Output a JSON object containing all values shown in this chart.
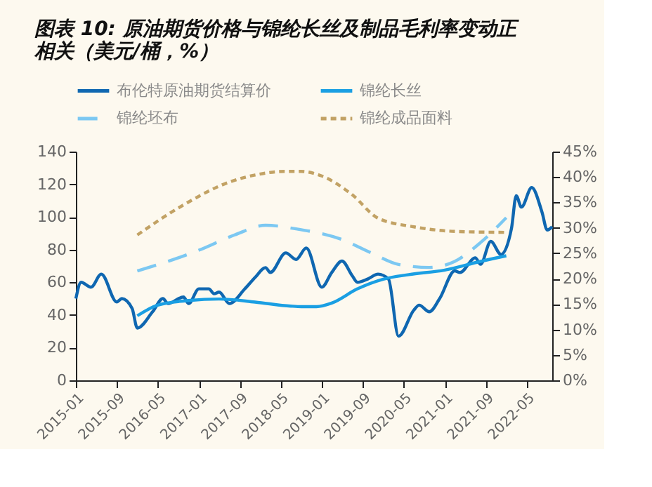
{
  "chart_data": {
    "type": "line",
    "title": "图表 10: 原油期货价格与锦纶长丝及制品毛利率变动正相关（美元/桶，%）",
    "xlim": [
      "2015-01",
      "2022-10"
    ],
    "xticks": [
      "2015-01",
      "2015-09",
      "2016-05",
      "2017-01",
      "2017-09",
      "2018-05",
      "2019-01",
      "2019-09",
      "2020-05",
      "2021-01",
      "2021-09",
      "2022-05"
    ],
    "ylim": [
      0,
      140
    ],
    "yticks": [
      0,
      20,
      40,
      60,
      80,
      100,
      120,
      140
    ],
    "y2lim": [
      0,
      45
    ],
    "y2ticks": [
      {
        "value": 0,
        "label": "0%"
      },
      {
        "value": 5,
        "label": "5%"
      },
      {
        "value": 10,
        "label": "10%"
      },
      {
        "value": 15,
        "label": "15%"
      },
      {
        "value": 20,
        "label": "20%"
      },
      {
        "value": 25,
        "label": "25%"
      },
      {
        "value": 30,
        "label": "30%"
      },
      {
        "value": 35,
        "label": "35%"
      },
      {
        "value": 40,
        "label": "40%"
      },
      {
        "value": 45,
        "label": "45%"
      }
    ],
    "legend": "top",
    "grid": false,
    "series": [
      {
        "name": "布伦特原油期货结算价",
        "color": "#0f67b1",
        "line_style": "solid",
        "x": [
          "2015-01",
          "2015-02",
          "2015-04",
          "2015-06",
          "2015-09",
          "2015-10",
          "2015-12",
          "2016-01",
          "2016-04",
          "2016-06",
          "2016-07",
          "2016-10",
          "2016-11",
          "2017-01",
          "2017-03",
          "2017-04",
          "2017-05",
          "2017-07",
          "2017-10",
          "2017-12",
          "2018-02",
          "2018-03",
          "2018-06",
          "2018-08",
          "2018-10",
          "2019-01",
          "2019-03",
          "2019-05",
          "2019-07",
          "2019-08",
          "2019-10",
          "2019-12",
          "2020-02",
          "2020-04",
          "2020-07",
          "2020-08",
          "2020-10",
          "2020-12",
          "2021-03",
          "2021-04",
          "2021-07",
          "2021-08",
          "2021-10",
          "2021-12",
          "2022-02",
          "2022-03",
          "2022-04",
          "2022-06",
          "2022-08",
          "2022-09",
          "2022-10"
        ],
        "values": [
          50,
          60,
          57,
          65,
          48,
          50,
          44,
          32,
          42,
          50,
          47,
          51,
          47,
          56,
          56,
          53,
          54,
          47,
          56,
          63,
          69,
          66,
          78,
          74,
          81,
          57,
          66,
          73,
          64,
          60,
          62,
          65,
          62,
          27,
          43,
          46,
          42,
          50,
          67,
          66,
          75,
          71,
          85,
          77,
          93,
          113,
          106,
          118,
          103,
          92,
          94
        ]
      },
      {
        "name": "锦纶长丝",
        "color": "#1a9fe3",
        "line_style": "solid",
        "axis": "y2",
        "x": [
          "2016-01",
          "2016-05",
          "2016-11",
          "2017-05",
          "2017-12",
          "2018-07",
          "2018-09",
          "2018-12",
          "2019-03",
          "2019-08",
          "2020-01",
          "2020-06",
          "2021-01",
          "2021-08",
          "2022-01"
        ],
        "values": [
          12.7,
          14.8,
          15.7,
          16.0,
          15.4,
          14.6,
          14.5,
          14.5,
          15.2,
          18.0,
          19.9,
          20.8,
          21.7,
          23.4,
          24.5
        ]
      },
      {
        "name": "锦纶坯布",
        "color": "#7cc8f2",
        "line_style": "dashed",
        "axis": "y2",
        "x": [
          "2016-01",
          "2017-01",
          "2017-08",
          "2018-02",
          "2018-08",
          "2019-05",
          "2019-11",
          "2020-04",
          "2020-10",
          "2021-03",
          "2021-08",
          "2022-01"
        ],
        "values": [
          21.5,
          25.6,
          28.6,
          30.5,
          29.8,
          27.7,
          24.9,
          22.8,
          22.2,
          23.4,
          27.1,
          32.0
        ]
      },
      {
        "name": "锦纶成品面料",
        "color": "#c2a264",
        "line_style": "dotted",
        "axis": "y2",
        "x": [
          "2016-01",
          "2016-10",
          "2017-07",
          "2017-12",
          "2018-06",
          "2018-09",
          "2019-01",
          "2019-07",
          "2019-12",
          "2020-07",
          "2021-03",
          "2022-01"
        ],
        "values": [
          28.6,
          34.5,
          39.0,
          40.4,
          41.1,
          41.1,
          40.2,
          36.5,
          31.9,
          30.2,
          29.3,
          29.1
        ]
      }
    ]
  }
}
